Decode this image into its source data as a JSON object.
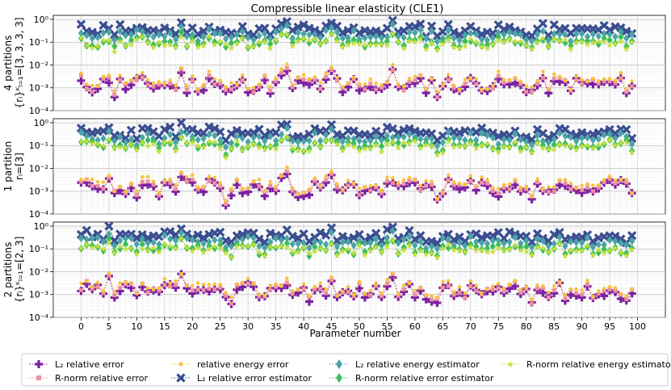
{
  "chart_data": {
    "type": "scatter",
    "title": "Compressible linear elasticity (CLE1)",
    "xlabel": "Parameter number",
    "x_ticks": [
      0,
      5,
      10,
      15,
      20,
      25,
      30,
      35,
      40,
      45,
      50,
      55,
      60,
      65,
      70,
      75,
      80,
      85,
      90,
      95,
      100
    ],
    "xlim": [
      -5,
      105
    ],
    "yscale": "log",
    "ylim": [
      0.0001,
      1.5
    ],
    "y_ticks": [
      0.0001,
      0.001,
      0.01,
      0.1,
      1
    ],
    "y_tick_labels": [
      "10⁻⁴",
      "10⁻³",
      "10⁻²",
      "10⁻¹",
      "10⁰"
    ],
    "grid": true,
    "subplots": [
      {
        "ylabel_line1": "4 partitions",
        "ylabel_line2": "{rₗ}ᴷₗ₌₁=[3, 3, 3, 3]",
        "seed": 11
      },
      {
        "ylabel_line1": "1 partition",
        "ylabel_line2": "rₗ=[3]",
        "seed": 23
      },
      {
        "ylabel_line1": "2 partitions",
        "ylabel_line2": "{rₗ}ᴷₗ₌₁=[2, 3]",
        "seed": 37
      }
    ],
    "series": [
      {
        "name": "L₂ relative error",
        "color": "#7b1fa2",
        "marker": "plus",
        "level": 0.0013
      },
      {
        "name": "R-norm relative error",
        "color": "#ec8fa0",
        "marker": "square",
        "level": 0.0015
      },
      {
        "name": "relative energy error",
        "color": "#f9c23c",
        "marker": "dot",
        "level": 0.002
      },
      {
        "name": "L₂ relative error estimator",
        "color": "#3a4d8f",
        "marker": "x",
        "level": 0.35
      },
      {
        "name": "L₂ relative energy estimator",
        "color": "#4aa3a8",
        "marker": "diamond",
        "level": 0.2
      },
      {
        "name": "R-norm relative error estimator",
        "color": "#3cbc5c",
        "marker": "diamond",
        "level": 0.1
      },
      {
        "name": "R-norm relative energy estimator",
        "color": "#c4e03a",
        "marker": "star",
        "level": 0.09
      }
    ],
    "legend_location": "bottom"
  }
}
